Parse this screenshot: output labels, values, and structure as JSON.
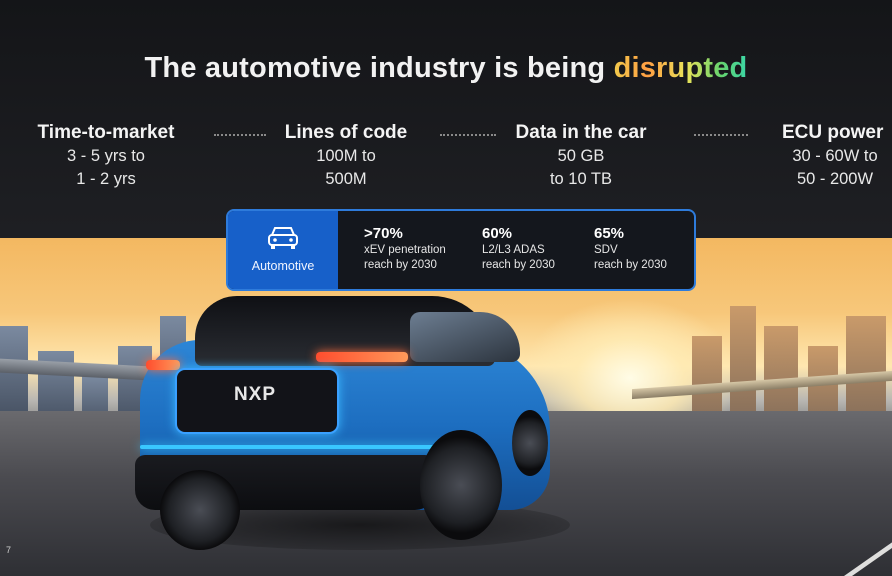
{
  "slide": {
    "title_prefix": "The automotive industry is being ",
    "title_highlight": "disrupted",
    "page_number": "7"
  },
  "metrics": [
    {
      "title": "Time-to-market",
      "line1": "3 - 5 yrs to",
      "line2": "1 - 2 yrs"
    },
    {
      "title": "Lines of code",
      "line1": "100M to",
      "line2": "500M"
    },
    {
      "title": "Data in the car",
      "line1": "50 GB",
      "line2": "to 10 TB"
    },
    {
      "title": "ECU power",
      "line1": "30 - 60W to",
      "line2": "50 - 200W"
    }
  ],
  "info_box": {
    "badge_label": "Automotive",
    "badge_icon": "car-front-icon",
    "stats": [
      {
        "value": ">70%",
        "line1": "xEV penetration",
        "line2": "reach by 2030"
      },
      {
        "value": "60%",
        "line1": "L2/L3 ADAS",
        "line2": "reach by 2030"
      },
      {
        "value": "65%",
        "line1": "SDV",
        "line2": "reach by 2030"
      }
    ]
  },
  "car": {
    "logo_text": "NXP"
  },
  "colors": {
    "accent_blue": "#1760c9",
    "border_blue": "#2e7bdb",
    "glow_cyan": "#39c7ff",
    "tail_red": "#ff4d2e"
  }
}
